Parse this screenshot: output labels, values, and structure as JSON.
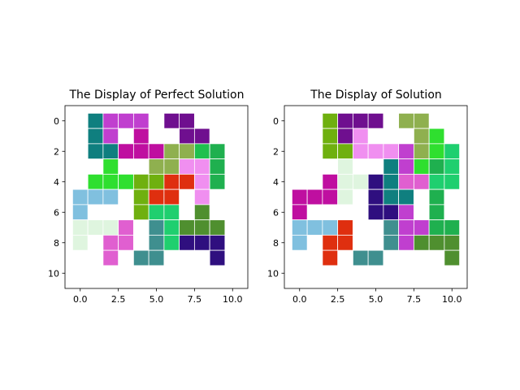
{
  "chart_data": [
    {
      "type": "heatmap",
      "title": "The Display of Perfect Solution",
      "xlim": [
        -1,
        11
      ],
      "ylim": [
        11,
        -1
      ],
      "y_inverted": true,
      "xticks": [
        "0.0",
        "2.5",
        "5.0",
        "7.5",
        "10.0"
      ],
      "xtick_values": [
        0,
        2.5,
        5,
        7.5,
        10
      ],
      "yticks": [
        "0",
        "2",
        "4",
        "6",
        "8",
        "10"
      ],
      "ytick_values": [
        0,
        2,
        4,
        6,
        8,
        10
      ],
      "grid": false,
      "cells": [
        {
          "x": 1,
          "y": 0,
          "color": "#0f7f7f"
        },
        {
          "x": 2,
          "y": 0,
          "color": "#c03fcf"
        },
        {
          "x": 3,
          "y": 0,
          "color": "#c03fcf"
        },
        {
          "x": 4,
          "y": 0,
          "color": "#c03fcf"
        },
        {
          "x": 6,
          "y": 0,
          "color": "#6f0f8f"
        },
        {
          "x": 7,
          "y": 0,
          "color": "#6f0f8f"
        },
        {
          "x": 1,
          "y": 1,
          "color": "#0f7f7f"
        },
        {
          "x": 2,
          "y": 1,
          "color": "#c03fcf"
        },
        {
          "x": 4,
          "y": 1,
          "color": "#bf0fa0"
        },
        {
          "x": 7,
          "y": 1,
          "color": "#6f0f8f"
        },
        {
          "x": 8,
          "y": 1,
          "color": "#6f0f8f"
        },
        {
          "x": 1,
          "y": 2,
          "color": "#0f7f7f"
        },
        {
          "x": 2,
          "y": 2,
          "color": "#0f7f7f"
        },
        {
          "x": 3,
          "y": 2,
          "color": "#bf0fa0"
        },
        {
          "x": 4,
          "y": 2,
          "color": "#bf0fa0"
        },
        {
          "x": 5,
          "y": 2,
          "color": "#bf0fa0"
        },
        {
          "x": 6,
          "y": 2,
          "color": "#8fb04f"
        },
        {
          "x": 7,
          "y": 2,
          "color": "#8fb04f"
        },
        {
          "x": 8,
          "y": 2,
          "color": "#1fc04f"
        },
        {
          "x": 9,
          "y": 2,
          "color": "#1fb04f"
        },
        {
          "x": 2,
          "y": 3,
          "color": "#2fdf2f"
        },
        {
          "x": 5,
          "y": 3,
          "color": "#8fb04f"
        },
        {
          "x": 6,
          "y": 3,
          "color": "#8fb04f"
        },
        {
          "x": 7,
          "y": 3,
          "color": "#f08ff0"
        },
        {
          "x": 8,
          "y": 3,
          "color": "#f08ff0"
        },
        {
          "x": 9,
          "y": 3,
          "color": "#1fb04f"
        },
        {
          "x": 1,
          "y": 4,
          "color": "#2fdf2f"
        },
        {
          "x": 2,
          "y": 4,
          "color": "#2fdf2f"
        },
        {
          "x": 3,
          "y": 4,
          "color": "#2fdf2f"
        },
        {
          "x": 4,
          "y": 4,
          "color": "#6fb00f"
        },
        {
          "x": 5,
          "y": 4,
          "color": "#6fb00f"
        },
        {
          "x": 6,
          "y": 4,
          "color": "#df2f0f"
        },
        {
          "x": 7,
          "y": 4,
          "color": "#df2f0f"
        },
        {
          "x": 8,
          "y": 4,
          "color": "#f08ff0"
        },
        {
          "x": 9,
          "y": 4,
          "color": "#1fb04f"
        },
        {
          "x": 0,
          "y": 5,
          "color": "#80c0df"
        },
        {
          "x": 1,
          "y": 5,
          "color": "#80c0df"
        },
        {
          "x": 2,
          "y": 5,
          "color": "#80c0df"
        },
        {
          "x": 4,
          "y": 5,
          "color": "#6fb00f"
        },
        {
          "x": 5,
          "y": 5,
          "color": "#df2f0f"
        },
        {
          "x": 6,
          "y": 5,
          "color": "#df2f0f"
        },
        {
          "x": 8,
          "y": 5,
          "color": "#f08ff0"
        },
        {
          "x": 0,
          "y": 6,
          "color": "#80c0df"
        },
        {
          "x": 4,
          "y": 6,
          "color": "#6fb00f"
        },
        {
          "x": 5,
          "y": 6,
          "color": "#1fcf6f"
        },
        {
          "x": 6,
          "y": 6,
          "color": "#1fcf6f"
        },
        {
          "x": 8,
          "y": 6,
          "color": "#4f8f2f"
        },
        {
          "x": 0,
          "y": 7,
          "color": "#dff5df"
        },
        {
          "x": 1,
          "y": 7,
          "color": "#dff5df"
        },
        {
          "x": 2,
          "y": 7,
          "color": "#dff5df"
        },
        {
          "x": 3,
          "y": 7,
          "color": "#e05fd0"
        },
        {
          "x": 5,
          "y": 7,
          "color": "#3f8f8f"
        },
        {
          "x": 6,
          "y": 7,
          "color": "#1fcf6f"
        },
        {
          "x": 7,
          "y": 7,
          "color": "#4f8f2f"
        },
        {
          "x": 8,
          "y": 7,
          "color": "#4f8f2f"
        },
        {
          "x": 9,
          "y": 7,
          "color": "#4f8f2f"
        },
        {
          "x": 0,
          "y": 8,
          "color": "#dff5df"
        },
        {
          "x": 2,
          "y": 8,
          "color": "#e05fd0"
        },
        {
          "x": 3,
          "y": 8,
          "color": "#e05fd0"
        },
        {
          "x": 5,
          "y": 8,
          "color": "#3f8f8f"
        },
        {
          "x": 6,
          "y": 8,
          "color": "#1fcf6f"
        },
        {
          "x": 7,
          "y": 8,
          "color": "#2f0f7f"
        },
        {
          "x": 8,
          "y": 8,
          "color": "#2f0f7f"
        },
        {
          "x": 9,
          "y": 8,
          "color": "#2f0f7f"
        },
        {
          "x": 2,
          "y": 9,
          "color": "#e05fd0"
        },
        {
          "x": 4,
          "y": 9,
          "color": "#3f8f8f"
        },
        {
          "x": 5,
          "y": 9,
          "color": "#3f8f8f"
        },
        {
          "x": 9,
          "y": 9,
          "color": "#2f0f7f"
        }
      ]
    },
    {
      "type": "heatmap",
      "title": "The Display of Solution",
      "xlim": [
        -1,
        11
      ],
      "ylim": [
        11,
        -1
      ],
      "y_inverted": true,
      "xticks": [
        "0.0",
        "2.5",
        "5.0",
        "7.5",
        "10.0"
      ],
      "xtick_values": [
        0,
        2.5,
        5,
        7.5,
        10
      ],
      "yticks": [
        "0",
        "2",
        "4",
        "6",
        "8",
        "10"
      ],
      "ytick_values": [
        0,
        2,
        4,
        6,
        8,
        10
      ],
      "grid": false,
      "cells": [
        {
          "x": 2,
          "y": 0,
          "color": "#6fb00f"
        },
        {
          "x": 3,
          "y": 0,
          "color": "#6f0f8f"
        },
        {
          "x": 4,
          "y": 0,
          "color": "#6f0f8f"
        },
        {
          "x": 5,
          "y": 0,
          "color": "#6f0f8f"
        },
        {
          "x": 7,
          "y": 0,
          "color": "#8fb04f"
        },
        {
          "x": 8,
          "y": 0,
          "color": "#8fb04f"
        },
        {
          "x": 2,
          "y": 1,
          "color": "#6fb00f"
        },
        {
          "x": 3,
          "y": 1,
          "color": "#6f0f8f"
        },
        {
          "x": 4,
          "y": 1,
          "color": "#f08ff0"
        },
        {
          "x": 8,
          "y": 1,
          "color": "#8fb04f"
        },
        {
          "x": 9,
          "y": 1,
          "color": "#2fdf2f"
        },
        {
          "x": 2,
          "y": 2,
          "color": "#6fb00f"
        },
        {
          "x": 3,
          "y": 2,
          "color": "#6fb00f"
        },
        {
          "x": 4,
          "y": 2,
          "color": "#f08ff0"
        },
        {
          "x": 5,
          "y": 2,
          "color": "#f08ff0"
        },
        {
          "x": 6,
          "y": 2,
          "color": "#f08ff0"
        },
        {
          "x": 7,
          "y": 2,
          "color": "#c03fcf"
        },
        {
          "x": 8,
          "y": 2,
          "color": "#8fb04f"
        },
        {
          "x": 9,
          "y": 2,
          "color": "#2fdf2f"
        },
        {
          "x": 10,
          "y": 2,
          "color": "#1fcf6f"
        },
        {
          "x": 3,
          "y": 3,
          "color": "#dff5df"
        },
        {
          "x": 6,
          "y": 3,
          "color": "#0f7f7f"
        },
        {
          "x": 7,
          "y": 3,
          "color": "#c03fcf"
        },
        {
          "x": 8,
          "y": 3,
          "color": "#2fdf2f"
        },
        {
          "x": 9,
          "y": 3,
          "color": "#1fb04f"
        },
        {
          "x": 10,
          "y": 3,
          "color": "#1fcf6f"
        },
        {
          "x": 2,
          "y": 4,
          "color": "#bf0fa0"
        },
        {
          "x": 3,
          "y": 4,
          "color": "#dff5df"
        },
        {
          "x": 4,
          "y": 4,
          "color": "#dff5df"
        },
        {
          "x": 5,
          "y": 4,
          "color": "#2f0f7f"
        },
        {
          "x": 6,
          "y": 4,
          "color": "#0f7f7f"
        },
        {
          "x": 7,
          "y": 4,
          "color": "#e05fd0"
        },
        {
          "x": 8,
          "y": 4,
          "color": "#e05fd0"
        },
        {
          "x": 9,
          "y": 4,
          "color": "#1fcf6f"
        },
        {
          "x": 10,
          "y": 4,
          "color": "#1fcf6f"
        },
        {
          "x": 0,
          "y": 5,
          "color": "#bf0fa0"
        },
        {
          "x": 1,
          "y": 5,
          "color": "#bf0fa0"
        },
        {
          "x": 2,
          "y": 5,
          "color": "#bf0fa0"
        },
        {
          "x": 3,
          "y": 5,
          "color": "#dff5df"
        },
        {
          "x": 5,
          "y": 5,
          "color": "#2f0f7f"
        },
        {
          "x": 6,
          "y": 5,
          "color": "#0f7f7f"
        },
        {
          "x": 7,
          "y": 5,
          "color": "#0f7f7f"
        },
        {
          "x": 9,
          "y": 5,
          "color": "#1fb04f"
        },
        {
          "x": 0,
          "y": 6,
          "color": "#bf0fa0"
        },
        {
          "x": 5,
          "y": 6,
          "color": "#2f0f7f"
        },
        {
          "x": 6,
          "y": 6,
          "color": "#2f0f7f"
        },
        {
          "x": 7,
          "y": 6,
          "color": "#c03fcf"
        },
        {
          "x": 9,
          "y": 6,
          "color": "#1fb04f"
        },
        {
          "x": 0,
          "y": 7,
          "color": "#80c0df"
        },
        {
          "x": 1,
          "y": 7,
          "color": "#80c0df"
        },
        {
          "x": 2,
          "y": 7,
          "color": "#80c0df"
        },
        {
          "x": 3,
          "y": 7,
          "color": "#df2f0f"
        },
        {
          "x": 6,
          "y": 7,
          "color": "#3f8f8f"
        },
        {
          "x": 7,
          "y": 7,
          "color": "#c03fcf"
        },
        {
          "x": 8,
          "y": 7,
          "color": "#c03fcf"
        },
        {
          "x": 9,
          "y": 7,
          "color": "#1fb04f"
        },
        {
          "x": 10,
          "y": 7,
          "color": "#1fb04f"
        },
        {
          "x": 0,
          "y": 8,
          "color": "#80c0df"
        },
        {
          "x": 2,
          "y": 8,
          "color": "#df2f0f"
        },
        {
          "x": 3,
          "y": 8,
          "color": "#df2f0f"
        },
        {
          "x": 6,
          "y": 8,
          "color": "#3f8f8f"
        },
        {
          "x": 7,
          "y": 8,
          "color": "#c03fcf"
        },
        {
          "x": 8,
          "y": 8,
          "color": "#4f8f2f"
        },
        {
          "x": 9,
          "y": 8,
          "color": "#4f8f2f"
        },
        {
          "x": 10,
          "y": 8,
          "color": "#4f8f2f"
        },
        {
          "x": 2,
          "y": 9,
          "color": "#df2f0f"
        },
        {
          "x": 4,
          "y": 9,
          "color": "#3f8f8f"
        },
        {
          "x": 5,
          "y": 9,
          "color": "#3f8f8f"
        },
        {
          "x": 10,
          "y": 9,
          "color": "#4f8f2f"
        }
      ]
    }
  ]
}
